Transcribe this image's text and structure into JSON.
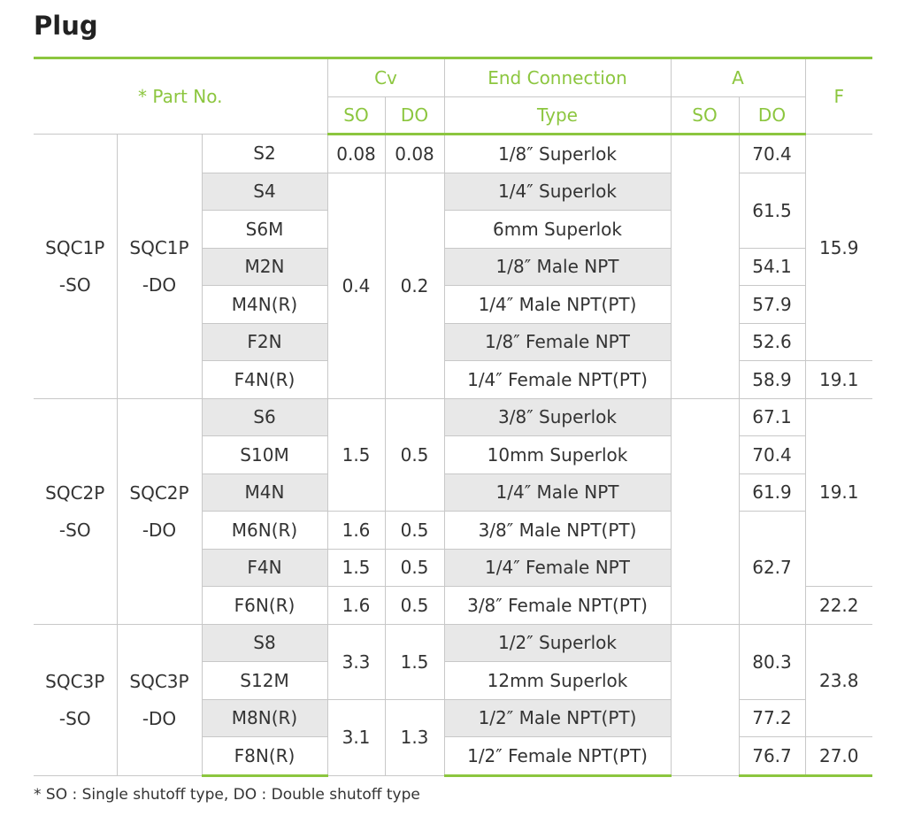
{
  "title": "Plug",
  "table": {
    "header": {
      "part_no": "* Part No.",
      "cv": "Cv",
      "end_connection": "End Connection",
      "a": "A",
      "f": "F",
      "cv_so": "SO",
      "cv_do": "DO",
      "type": "Type",
      "a_so": "SO",
      "a_do": "DO"
    },
    "groups": [
      {
        "so": [
          "SQC1P",
          "-SO"
        ],
        "do": [
          "SQC1P",
          "-DO"
        ],
        "rows": [
          {
            "model": "S2",
            "cv_so": "0.08",
            "cv_do": "0.08",
            "type": "1/8″ Superlok",
            "a_do": "70.4",
            "f": "15.9"
          },
          {
            "model": "S4",
            "cv_so": "0.4",
            "cv_do": "0.2",
            "type": "1/4″ Superlok",
            "a_do": "61.5"
          },
          {
            "model": "S6M",
            "type": "6mm Superlok"
          },
          {
            "model": "M2N",
            "type": "1/8″ Male NPT",
            "a_do": "54.1"
          },
          {
            "model": "M4N(R)",
            "type": "1/4″ Male NPT(PT)",
            "a_do": "57.9"
          },
          {
            "model": "F2N",
            "type": "1/8″ Female NPT",
            "a_do": "52.6"
          },
          {
            "model": "F4N(R)",
            "type": "1/4″ Female NPT(PT)",
            "a_do": "58.9",
            "f": "19.1"
          }
        ]
      },
      {
        "so": [
          "SQC2P",
          "-SO"
        ],
        "do": [
          "SQC2P",
          "-DO"
        ],
        "rows": [
          {
            "model": "S6",
            "cv_so": "1.5",
            "cv_do": "0.5",
            "type": "3/8″ Superlok",
            "a_do": "67.1",
            "f": "19.1"
          },
          {
            "model": "S10M",
            "type": "10mm Superlok",
            "a_do": "70.4"
          },
          {
            "model": "M4N",
            "type": "1/4″ Male NPT",
            "a_do": "61.9"
          },
          {
            "model": "M6N(R)",
            "cv_so": "1.6",
            "cv_do": "0.5",
            "type": "3/8″ Male NPT(PT)",
            "a_do": "62.7"
          },
          {
            "model": "F4N",
            "cv_so": "1.5",
            "cv_do": "0.5",
            "type": "1/4″ Female NPT"
          },
          {
            "model": "F6N(R)",
            "cv_so": "1.6",
            "cv_do": "0.5",
            "type": "3/8″ Female NPT(PT)",
            "f": "22.2"
          }
        ]
      },
      {
        "so": [
          "SQC3P",
          "-SO"
        ],
        "do": [
          "SQC3P",
          "-DO"
        ],
        "rows": [
          {
            "model": "S8",
            "cv_so": "3.3",
            "cv_do": "1.5",
            "type": "1/2″ Superlok",
            "a_do": "80.3",
            "f": "23.8"
          },
          {
            "model": "S12M",
            "type": "12mm Superlok"
          },
          {
            "model": "M8N(R)",
            "cv_so": "3.1",
            "cv_do": "1.3",
            "type": "1/2″ Male NPT(PT)",
            "a_do": "77.2"
          },
          {
            "model": "F8N(R)",
            "type": "1/2″ Female NPT(PT)",
            "a_do": "76.7",
            "f": "27.0"
          }
        ]
      }
    ]
  },
  "footnote": "* SO : Single shutoff type, DO : Double shutoff type"
}
